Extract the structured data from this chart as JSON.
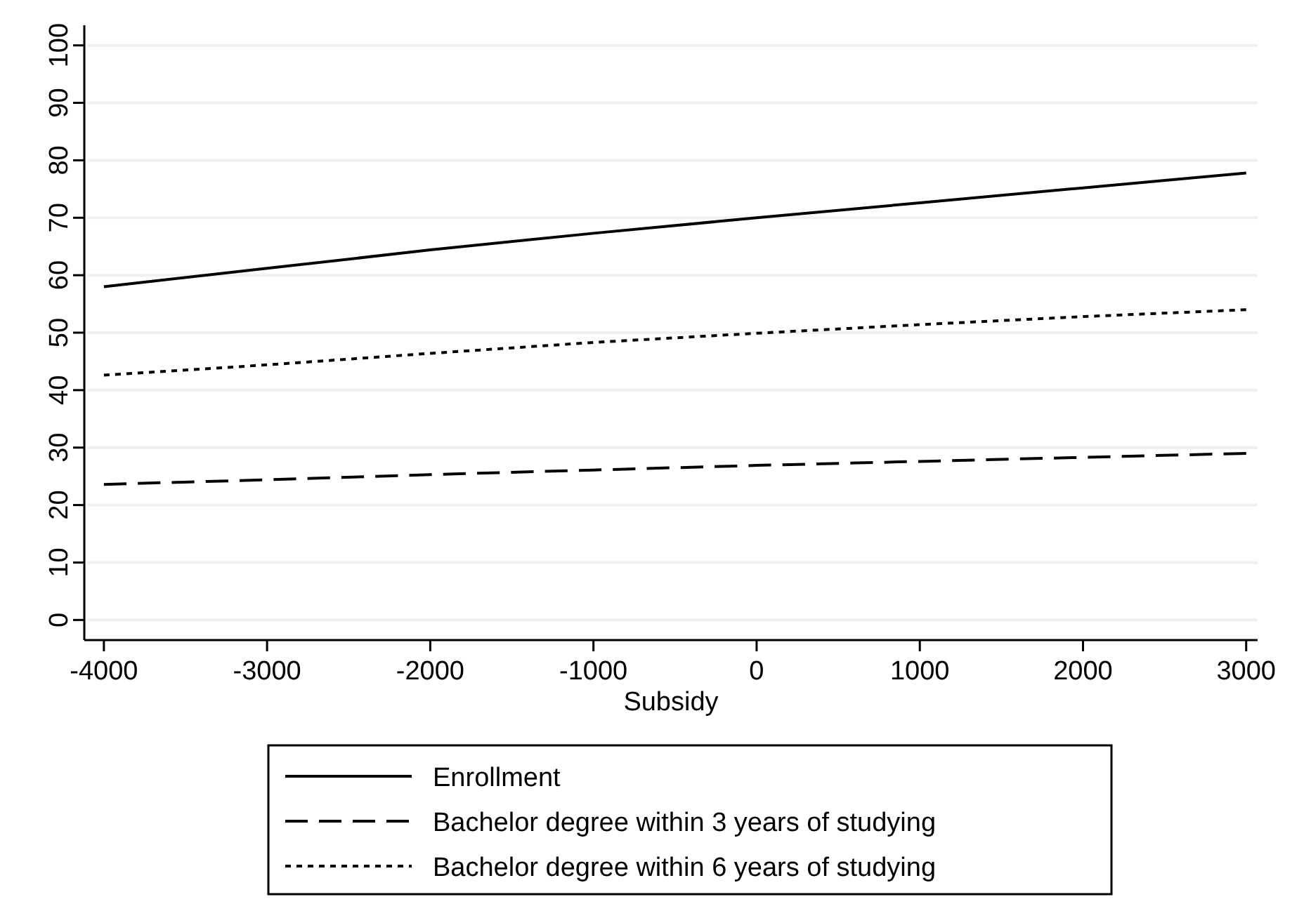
{
  "chart_data": {
    "type": "line",
    "xlabel": "Subsidy",
    "x": [
      -4000,
      -3000,
      -2000,
      -1000,
      0,
      1000,
      2000,
      3000
    ],
    "series": [
      {
        "name": "Enrollment",
        "color": "#000000",
        "line_style": "solid",
        "values": [
          58,
          61.2,
          64.4,
          67.3,
          70,
          72.6,
          75.2,
          77.8
        ]
      },
      {
        "name": "Bachelor degree within 3 years of studying",
        "color": "#000000",
        "line_style": "dashed",
        "values": [
          23.6,
          24.4,
          25.3,
          26.1,
          26.9,
          27.6,
          28.3,
          29
        ]
      },
      {
        "name": "Bachelor degree within 6 years of studying",
        "color": "#000000",
        "line_style": "dotted",
        "values": [
          42.6,
          44.4,
          46.4,
          48.3,
          49.9,
          51.4,
          52.8,
          54
        ]
      }
    ],
    "xlim": [
      -4120,
      3070
    ],
    "ylim": [
      -3.5,
      103.5
    ],
    "xticks": [
      -4000,
      -3000,
      -2000,
      -1000,
      0,
      1000,
      2000,
      3000
    ],
    "yticks": [
      0,
      10,
      20,
      30,
      40,
      50,
      60,
      70,
      80,
      90,
      100
    ],
    "grid": "y",
    "legend": "bottom"
  }
}
